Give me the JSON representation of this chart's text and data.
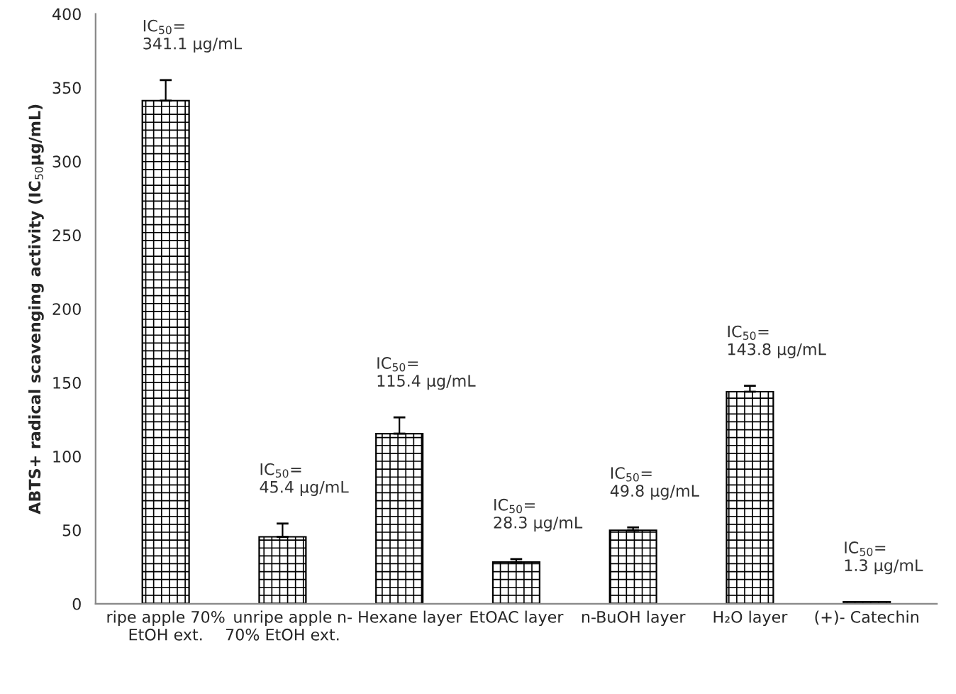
{
  "chart_data": {
    "type": "bar",
    "ylabel": "ABTS+ radical scavenging activity (IC$_{50}$µg/mL)",
    "categories": [
      "ripe apple 70%\nEtOH ext.",
      "unripe apple\n70% EtOH ext.",
      "n- Hexane layer",
      "EtOAC layer",
      "n-BuOH layer",
      "H₂O layer",
      "(+)- Catechin"
    ],
    "values": [
      341.1,
      45.4,
      115.4,
      28.3,
      49.8,
      143.8,
      1.3
    ],
    "errors": [
      14,
      9,
      11,
      2,
      2,
      4,
      null
    ],
    "value_labels": [
      "IC$_{50}$=\n341.1 µg/mL",
      "IC$_{50}$=\n45.4 µg/mL",
      "IC$_{50}$=\n115.4 µg/mL",
      "IC$_{50}$=\n28.3 µg/mL",
      "IC$_{50}$=\n49.8 µg/mL",
      "IC$_{50}$=\n143.8 µg/mL",
      "IC$_{50}$=\n1.3 µg/mL"
    ],
    "color": "#000000",
    "ylim": [
      0,
      400
    ],
    "yticks": [
      0,
      50,
      100,
      150,
      200,
      250,
      300,
      350,
      400
    ],
    "grid": false
  }
}
